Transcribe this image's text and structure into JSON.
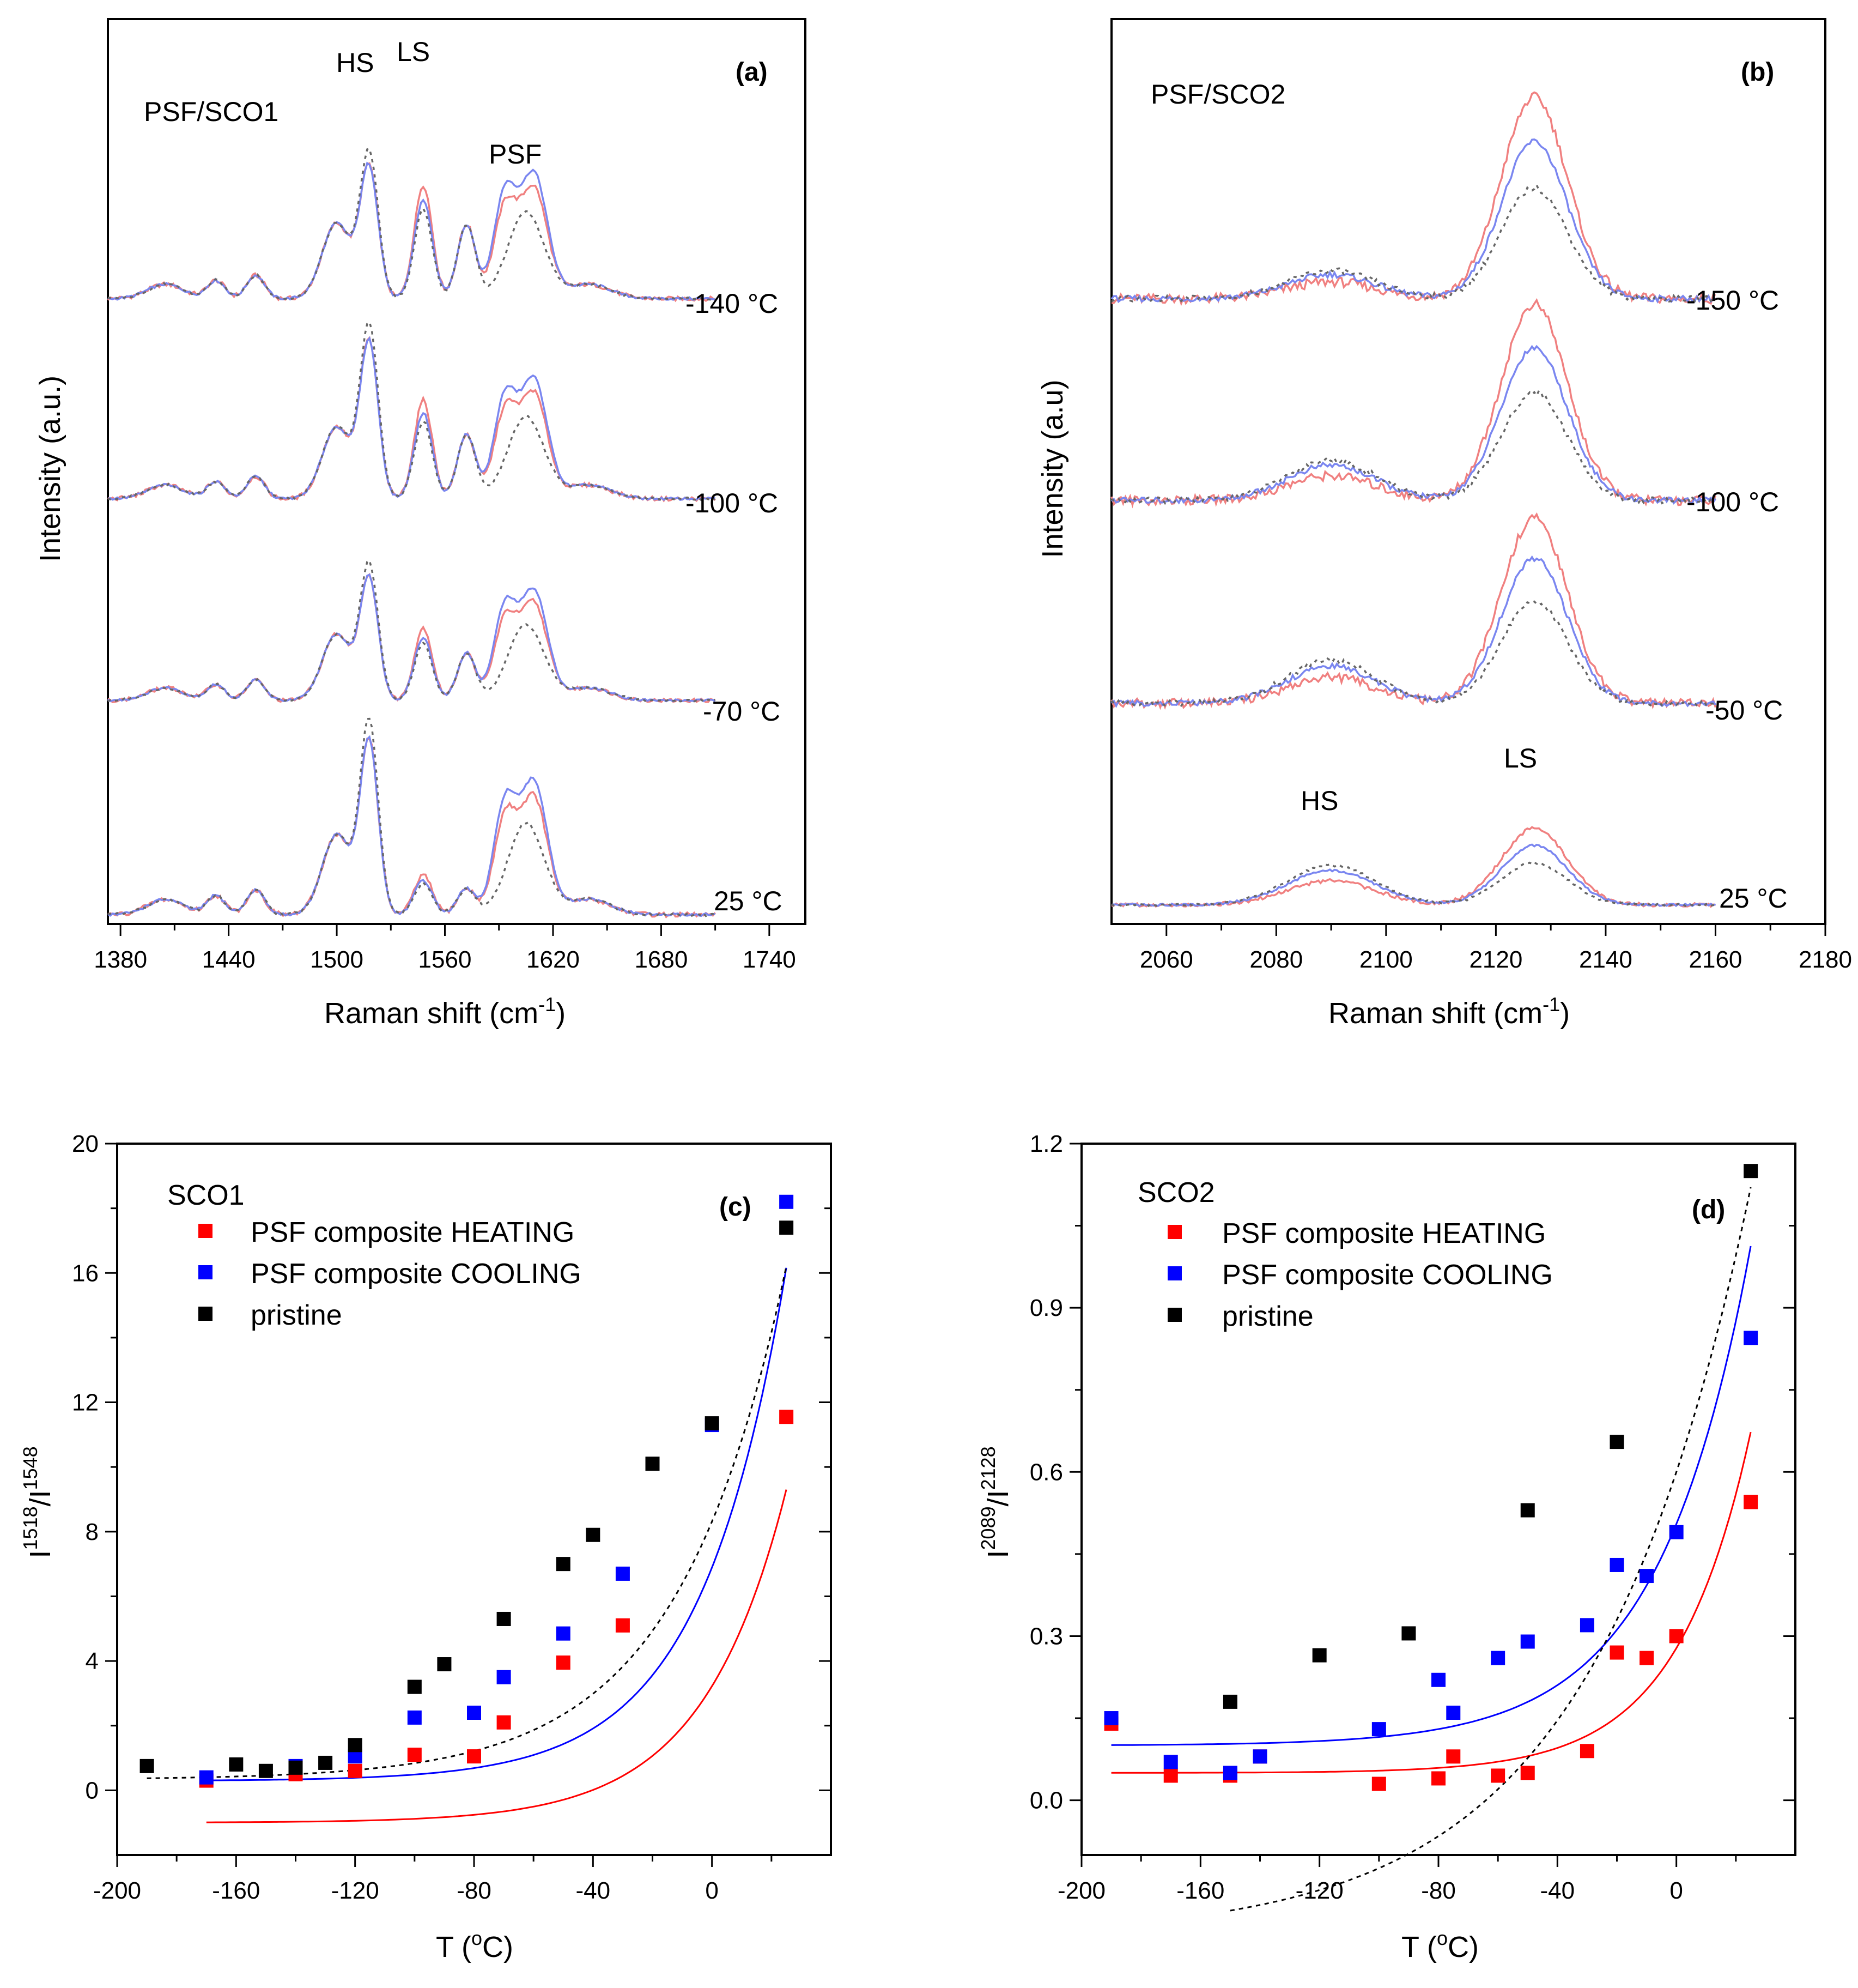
{
  "colors": {
    "heating": "#ff0000",
    "cooling": "#0000ff",
    "pristine": "#000000",
    "spec_heating": "#f08080",
    "spec_cooling": "#7a86f0",
    "spec_pristine": "#666666"
  },
  "chart_data": [
    {
      "panel": "a",
      "type": "line",
      "title": "PSF/SCO1",
      "tag": "(a)",
      "xlabel": "Raman shift (cm⁻¹)",
      "ylabel": "Intensity (a.u.)",
      "xlim": [
        1373,
        1760
      ],
      "xticks": [
        1380,
        1440,
        1500,
        1560,
        1620,
        1680,
        1740
      ],
      "annotations": [
        "HS",
        "LS",
        "PSF"
      ],
      "temperatures": [
        "-140 °C",
        "-100 °C",
        "-70 °C",
        "25 °C"
      ],
      "offsets": [
        3,
        2,
        1,
        0
      ],
      "spectrum_range": [
        1373,
        1710
      ],
      "series": [
        {
          "name": "heating",
          "style": "solid"
        },
        {
          "name": "cooling",
          "style": "solid"
        },
        {
          "name": "pristine",
          "style": "dotted"
        }
      ]
    },
    {
      "panel": "b",
      "type": "line",
      "title": "PSF/SCO2",
      "tag": "(b)",
      "xlabel": "Raman shift (cm⁻¹)",
      "ylabel": "Intensity (a.u)",
      "xlim": [
        2050,
        2180
      ],
      "xticks": [
        2060,
        2080,
        2100,
        2120,
        2140,
        2160,
        2180
      ],
      "annotations": [
        "HS",
        "LS"
      ],
      "temperatures": [
        "-150 °C",
        "-100 °C",
        "-50 °C",
        "25 °C"
      ],
      "offsets": [
        3,
        2,
        1,
        0
      ],
      "spectrum_range": [
        2050,
        2160
      ],
      "series": [
        {
          "name": "heating",
          "style": "solid"
        },
        {
          "name": "cooling",
          "style": "solid"
        },
        {
          "name": "pristine",
          "style": "dotted"
        }
      ]
    },
    {
      "panel": "c",
      "type": "scatter",
      "tag": "(c)",
      "legend_title": "SCO1",
      "xlabel": "T (°C)",
      "ylabel": "I1518/I1548",
      "xlim": [
        -200,
        40
      ],
      "ylim": [
        -2,
        20
      ],
      "xticks": [
        -200,
        -160,
        -120,
        -80,
        -40,
        0
      ],
      "yticks": [
        0,
        4,
        8,
        12,
        16,
        20
      ],
      "series": [
        {
          "name": "PSF composite HEATING",
          "x": [
            -170,
            -140,
            -120,
            -100,
            -80,
            -70,
            -50,
            -30,
            25
          ],
          "y": [
            0.3,
            0.5,
            0.6,
            1.1,
            1.05,
            2.1,
            3.95,
            5.1,
            11.55
          ],
          "fit": {
            "A": 4.22,
            "B": 0.0357,
            "C": -1.0,
            "from": -170,
            "to": 25,
            "style": "solid"
          }
        },
        {
          "name": "PSF composite COOLING",
          "x": [
            -170,
            -140,
            -120,
            -100,
            -80,
            -70,
            -50,
            -30,
            0,
            25
          ],
          "y": [
            0.4,
            0.75,
            1.05,
            2.25,
            2.4,
            3.5,
            4.85,
            6.7,
            11.3,
            18.2
          ],
          "fit": {
            "A": 6.6,
            "B": 0.0351,
            "C": 0.29,
            "from": -170,
            "to": 25,
            "style": "solid"
          }
        },
        {
          "name": "pristine",
          "x": [
            -190,
            -160,
            -150,
            -140,
            -130,
            -120,
            -100,
            -90,
            -70,
            -50,
            -40,
            -20,
            0,
            25
          ],
          "y": [
            0.75,
            0.8,
            0.6,
            0.7,
            0.85,
            1.4,
            3.2,
            3.9,
            5.3,
            7.0,
            7.9,
            10.1,
            11.35,
            17.4
          ],
          "fit": {
            "A": 7.98,
            "B": 0.0275,
            "C": 0.33,
            "from": -190,
            "to": 25,
            "style": "dashed"
          }
        }
      ]
    },
    {
      "panel": "d",
      "type": "scatter",
      "tag": "(d)",
      "legend_title": "SCO2",
      "xlabel": "T (°C)",
      "ylabel": "I2089/I2128",
      "xlim": [
        -200,
        40
      ],
      "ylim": [
        -0.1,
        1.2
      ],
      "xticks": [
        -200,
        -160,
        -120,
        -80,
        -40,
        0
      ],
      "yticks": [
        0.0,
        0.3,
        0.6,
        0.9,
        1.2
      ],
      "series": [
        {
          "name": "PSF composite HEATING",
          "x": [
            -190,
            -170,
            -150,
            -140,
            -100,
            -80,
            -75,
            -60,
            -50,
            -30,
            -20,
            -10,
            0,
            25
          ],
          "y": [
            0.14,
            0.045,
            0.045,
            0.08,
            0.03,
            0.04,
            0.08,
            0.045,
            0.05,
            0.09,
            0.27,
            0.26,
            0.3,
            0.545
          ],
          "fit": {
            "A": 0.228,
            "B": 0.0402,
            "C": 0.05,
            "from": -190,
            "to": 25,
            "style": "solid"
          }
        },
        {
          "name": "PSF composite COOLING",
          "x": [
            -190,
            -170,
            -150,
            -140,
            -100,
            -80,
            -75,
            -60,
            -50,
            -30,
            -20,
            -10,
            0,
            25
          ],
          "y": [
            0.15,
            0.07,
            0.05,
            0.08,
            0.13,
            0.22,
            0.16,
            0.26,
            0.29,
            0.32,
            0.43,
            0.41,
            0.49,
            0.845
          ],
          "fit": {
            "A": 0.405,
            "B": 0.0325,
            "C": 0.1,
            "from": -190,
            "to": 25,
            "style": "solid"
          }
        },
        {
          "name": "pristine",
          "x": [
            -150,
            -120,
            -90,
            -50,
            -20,
            25
          ],
          "y": [
            0.18,
            0.265,
            0.305,
            0.53,
            0.655,
            1.15
          ],
          "fit": {
            "A": 0.85,
            "B": 0.0191,
            "C": -0.25,
            "from": -150,
            "to": 25,
            "style": "dashed"
          }
        }
      ]
    }
  ]
}
